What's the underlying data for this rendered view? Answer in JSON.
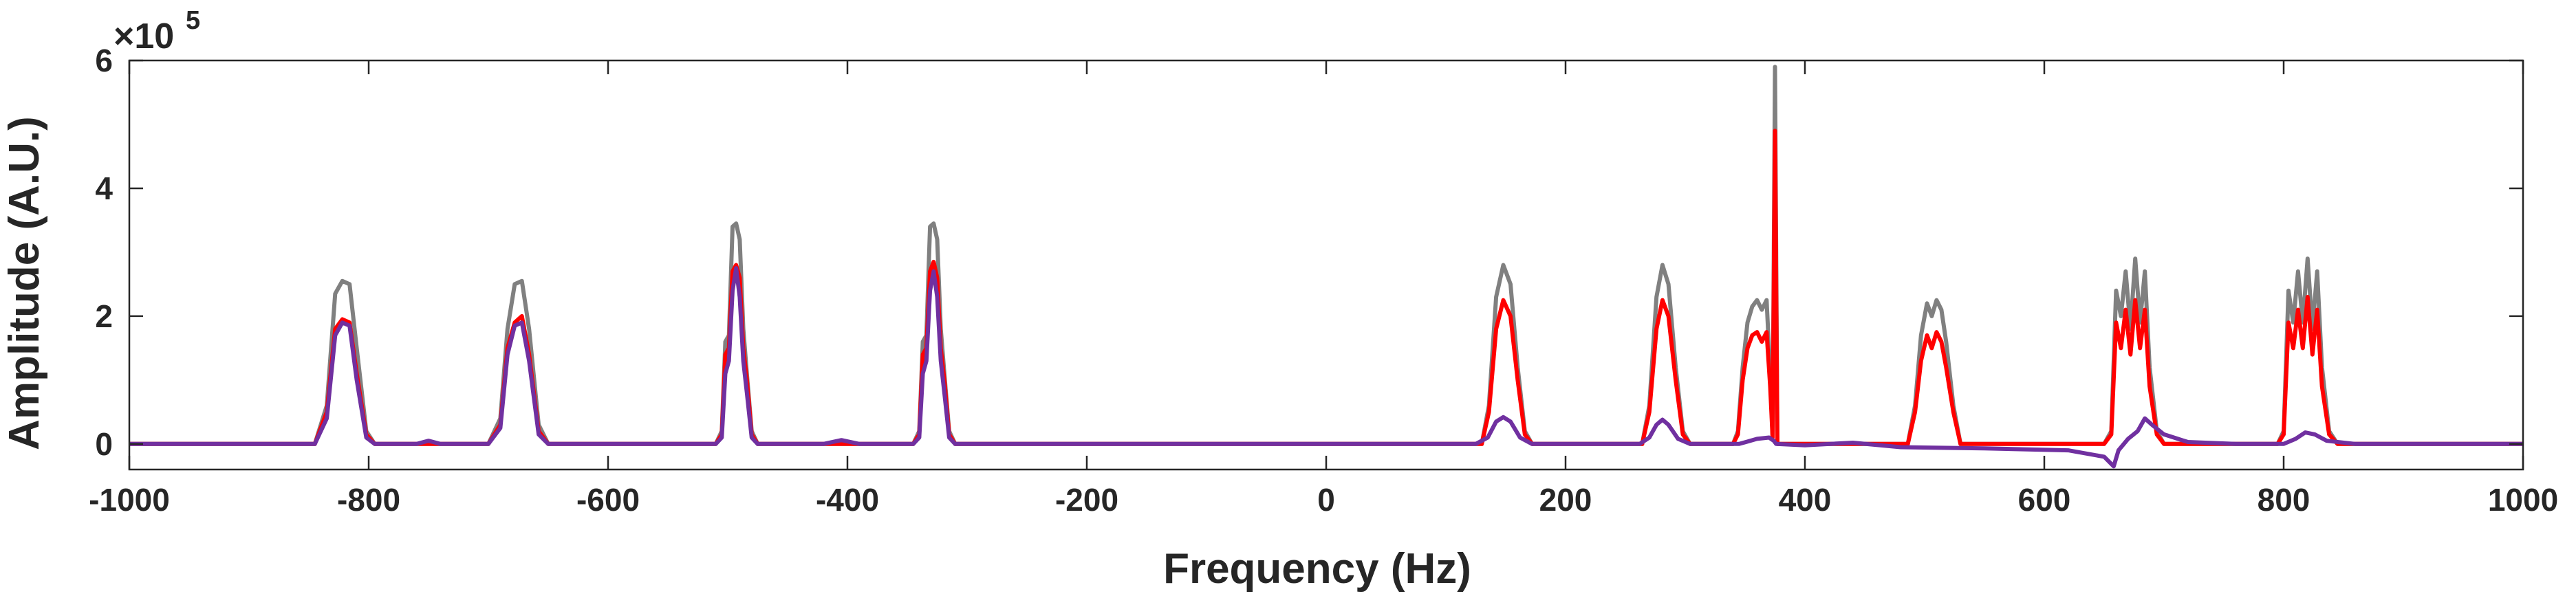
{
  "chart_data": {
    "type": "line",
    "xlabel": "Frequency (Hz)",
    "ylabel": "Amplitude (A.U.)",
    "xlim": [
      -1000,
      1000
    ],
    "ylim": [
      -40000,
      600000
    ],
    "y_exponent": {
      "base": "×10",
      "power": "5"
    },
    "x_ticks": [
      -1000,
      -800,
      -600,
      -400,
      -200,
      0,
      200,
      400,
      600,
      800,
      1000
    ],
    "x_tick_labels": [
      "-1000",
      "-800",
      "-600",
      "-400",
      "-200",
      "0",
      "200",
      "400",
      "600",
      "800",
      "1000"
    ],
    "y_ticks": [
      0,
      200000,
      400000,
      600000
    ],
    "y_tick_labels": [
      "0",
      "2",
      "4",
      "6"
    ],
    "grid": false,
    "series": [
      {
        "color": "#808080",
        "points": [
          [
            -1000,
            0
          ],
          [
            -845,
            0
          ],
          [
            -835,
            60000
          ],
          [
            -828,
            235000
          ],
          [
            -822,
            255000
          ],
          [
            -816,
            250000
          ],
          [
            -810,
            150000
          ],
          [
            -802,
            20000
          ],
          [
            -795,
            0
          ],
          [
            -700,
            0
          ],
          [
            -690,
            40000
          ],
          [
            -684,
            180000
          ],
          [
            -678,
            250000
          ],
          [
            -672,
            255000
          ],
          [
            -666,
            180000
          ],
          [
            -658,
            30000
          ],
          [
            -650,
            0
          ],
          [
            -510,
            0
          ],
          [
            -505,
            20000
          ],
          [
            -502,
            160000
          ],
          [
            -499,
            170000
          ],
          [
            -496,
            340000
          ],
          [
            -493,
            345000
          ],
          [
            -490,
            320000
          ],
          [
            -487,
            180000
          ],
          [
            -484,
            110000
          ],
          [
            -480,
            20000
          ],
          [
            -475,
            0
          ],
          [
            -345,
            0
          ],
          [
            -340,
            20000
          ],
          [
            -337,
            160000
          ],
          [
            -334,
            170000
          ],
          [
            -331,
            340000
          ],
          [
            -328,
            345000
          ],
          [
            -325,
            320000
          ],
          [
            -322,
            180000
          ],
          [
            -319,
            110000
          ],
          [
            -315,
            20000
          ],
          [
            -310,
            0
          ],
          [
            130,
            0
          ],
          [
            136,
            60000
          ],
          [
            142,
            230000
          ],
          [
            148,
            280000
          ],
          [
            154,
            250000
          ],
          [
            160,
            120000
          ],
          [
            166,
            20000
          ],
          [
            172,
            0
          ],
          [
            264,
            0
          ],
          [
            270,
            60000
          ],
          [
            276,
            230000
          ],
          [
            281,
            280000
          ],
          [
            286,
            250000
          ],
          [
            292,
            120000
          ],
          [
            298,
            20000
          ],
          [
            304,
            0
          ],
          [
            340,
            0
          ],
          [
            344,
            20000
          ],
          [
            348,
            120000
          ],
          [
            352,
            190000
          ],
          [
            356,
            215000
          ],
          [
            360,
            225000
          ],
          [
            364,
            210000
          ],
          [
            368,
            225000
          ],
          [
            371,
            110000
          ],
          [
            373,
            10000
          ],
          [
            375,
            590000
          ],
          [
            377,
            0
          ],
          [
            486,
            0
          ],
          [
            492,
            60000
          ],
          [
            497,
            170000
          ],
          [
            502,
            220000
          ],
          [
            506,
            200000
          ],
          [
            510,
            225000
          ],
          [
            514,
            210000
          ],
          [
            518,
            160000
          ],
          [
            524,
            60000
          ],
          [
            530,
            0
          ],
          [
            650,
            0
          ],
          [
            656,
            20000
          ],
          [
            660,
            240000
          ],
          [
            664,
            200000
          ],
          [
            668,
            270000
          ],
          [
            672,
            180000
          ],
          [
            676,
            290000
          ],
          [
            680,
            190000
          ],
          [
            684,
            270000
          ],
          [
            688,
            120000
          ],
          [
            694,
            20000
          ],
          [
            700,
            0
          ],
          [
            795,
            0
          ],
          [
            800,
            20000
          ],
          [
            804,
            240000
          ],
          [
            808,
            190000
          ],
          [
            812,
            270000
          ],
          [
            816,
            190000
          ],
          [
            820,
            290000
          ],
          [
            824,
            180000
          ],
          [
            828,
            270000
          ],
          [
            832,
            120000
          ],
          [
            838,
            20000
          ],
          [
            845,
            0
          ],
          [
            1000,
            0
          ]
        ]
      },
      {
        "color": "#ff0000",
        "points": [
          [
            -1000,
            0
          ],
          [
            -845,
            0
          ],
          [
            -835,
            50000
          ],
          [
            -828,
            180000
          ],
          [
            -822,
            195000
          ],
          [
            -816,
            190000
          ],
          [
            -810,
            110000
          ],
          [
            -802,
            15000
          ],
          [
            -795,
            0
          ],
          [
            -700,
            0
          ],
          [
            -690,
            30000
          ],
          [
            -684,
            150000
          ],
          [
            -678,
            190000
          ],
          [
            -672,
            200000
          ],
          [
            -666,
            140000
          ],
          [
            -658,
            20000
          ],
          [
            -650,
            0
          ],
          [
            -510,
            0
          ],
          [
            -505,
            15000
          ],
          [
            -502,
            140000
          ],
          [
            -499,
            150000
          ],
          [
            -496,
            270000
          ],
          [
            -493,
            280000
          ],
          [
            -490,
            260000
          ],
          [
            -487,
            150000
          ],
          [
            -484,
            100000
          ],
          [
            -480,
            15000
          ],
          [
            -475,
            0
          ],
          [
            -345,
            0
          ],
          [
            -340,
            15000
          ],
          [
            -337,
            140000
          ],
          [
            -334,
            150000
          ],
          [
            -331,
            270000
          ],
          [
            -328,
            285000
          ],
          [
            -325,
            260000
          ],
          [
            -322,
            150000
          ],
          [
            -319,
            100000
          ],
          [
            -315,
            15000
          ],
          [
            -310,
            0
          ],
          [
            130,
            0
          ],
          [
            136,
            50000
          ],
          [
            142,
            180000
          ],
          [
            148,
            225000
          ],
          [
            154,
            200000
          ],
          [
            160,
            100000
          ],
          [
            166,
            15000
          ],
          [
            172,
            0
          ],
          [
            264,
            0
          ],
          [
            270,
            50000
          ],
          [
            276,
            180000
          ],
          [
            281,
            225000
          ],
          [
            286,
            200000
          ],
          [
            292,
            100000
          ],
          [
            298,
            15000
          ],
          [
            304,
            0
          ],
          [
            340,
            0
          ],
          [
            344,
            15000
          ],
          [
            348,
            100000
          ],
          [
            352,
            150000
          ],
          [
            356,
            170000
          ],
          [
            360,
            175000
          ],
          [
            364,
            160000
          ],
          [
            368,
            175000
          ],
          [
            371,
            90000
          ],
          [
            373,
            10000
          ],
          [
            375,
            490000
          ],
          [
            377,
            0
          ],
          [
            486,
            0
          ],
          [
            492,
            50000
          ],
          [
            497,
            130000
          ],
          [
            502,
            170000
          ],
          [
            506,
            150000
          ],
          [
            510,
            175000
          ],
          [
            514,
            160000
          ],
          [
            518,
            120000
          ],
          [
            524,
            50000
          ],
          [
            530,
            0
          ],
          [
            650,
            0
          ],
          [
            656,
            15000
          ],
          [
            660,
            190000
          ],
          [
            664,
            150000
          ],
          [
            668,
            210000
          ],
          [
            672,
            140000
          ],
          [
            676,
            225000
          ],
          [
            680,
            150000
          ],
          [
            684,
            210000
          ],
          [
            688,
            90000
          ],
          [
            694,
            15000
          ],
          [
            700,
            0
          ],
          [
            795,
            0
          ],
          [
            800,
            15000
          ],
          [
            804,
            190000
          ],
          [
            808,
            150000
          ],
          [
            812,
            210000
          ],
          [
            816,
            150000
          ],
          [
            820,
            230000
          ],
          [
            824,
            140000
          ],
          [
            828,
            210000
          ],
          [
            832,
            90000
          ],
          [
            838,
            15000
          ],
          [
            845,
            0
          ],
          [
            1000,
            0
          ]
        ]
      },
      {
        "color": "#7030a0",
        "points": [
          [
            -1000,
            0
          ],
          [
            -845,
            0
          ],
          [
            -835,
            40000
          ],
          [
            -828,
            170000
          ],
          [
            -822,
            190000
          ],
          [
            -816,
            185000
          ],
          [
            -810,
            100000
          ],
          [
            -802,
            10000
          ],
          [
            -795,
            0
          ],
          [
            -760,
            0
          ],
          [
            -750,
            5000
          ],
          [
            -740,
            0
          ],
          [
            -700,
            0
          ],
          [
            -690,
            25000
          ],
          [
            -684,
            140000
          ],
          [
            -678,
            185000
          ],
          [
            -672,
            190000
          ],
          [
            -666,
            130000
          ],
          [
            -658,
            15000
          ],
          [
            -650,
            0
          ],
          [
            -510,
            0
          ],
          [
            -505,
            10000
          ],
          [
            -502,
            110000
          ],
          [
            -499,
            130000
          ],
          [
            -496,
            240000
          ],
          [
            -493,
            275000
          ],
          [
            -490,
            230000
          ],
          [
            -487,
            130000
          ],
          [
            -484,
            80000
          ],
          [
            -480,
            10000
          ],
          [
            -475,
            0
          ],
          [
            -420,
            0
          ],
          [
            -405,
            6000
          ],
          [
            -390,
            0
          ],
          [
            -345,
            0
          ],
          [
            -340,
            10000
          ],
          [
            -337,
            110000
          ],
          [
            -334,
            130000
          ],
          [
            -331,
            240000
          ],
          [
            -328,
            270000
          ],
          [
            -325,
            230000
          ],
          [
            -322,
            130000
          ],
          [
            -319,
            80000
          ],
          [
            -315,
            10000
          ],
          [
            -310,
            0
          ],
          [
            125,
            0
          ],
          [
            135,
            10000
          ],
          [
            142,
            35000
          ],
          [
            148,
            42000
          ],
          [
            154,
            35000
          ],
          [
            162,
            10000
          ],
          [
            172,
            0
          ],
          [
            262,
            0
          ],
          [
            270,
            10000
          ],
          [
            276,
            30000
          ],
          [
            281,
            38000
          ],
          [
            286,
            30000
          ],
          [
            294,
            8000
          ],
          [
            304,
            0
          ],
          [
            345,
            0
          ],
          [
            360,
            8000
          ],
          [
            370,
            10000
          ],
          [
            374,
            5000
          ],
          [
            376,
            0
          ],
          [
            400,
            -2000
          ],
          [
            440,
            2000
          ],
          [
            480,
            -5000
          ],
          [
            550,
            -7000
          ],
          [
            620,
            -10000
          ],
          [
            650,
            -20000
          ],
          [
            658,
            -35000
          ],
          [
            662,
            -10000
          ],
          [
            670,
            8000
          ],
          [
            678,
            20000
          ],
          [
            684,
            40000
          ],
          [
            690,
            30000
          ],
          [
            700,
            15000
          ],
          [
            720,
            3000
          ],
          [
            760,
            0
          ],
          [
            800,
            0
          ],
          [
            810,
            8000
          ],
          [
            818,
            18000
          ],
          [
            826,
            15000
          ],
          [
            836,
            5000
          ],
          [
            860,
            0
          ],
          [
            1000,
            0
          ]
        ]
      }
    ]
  }
}
